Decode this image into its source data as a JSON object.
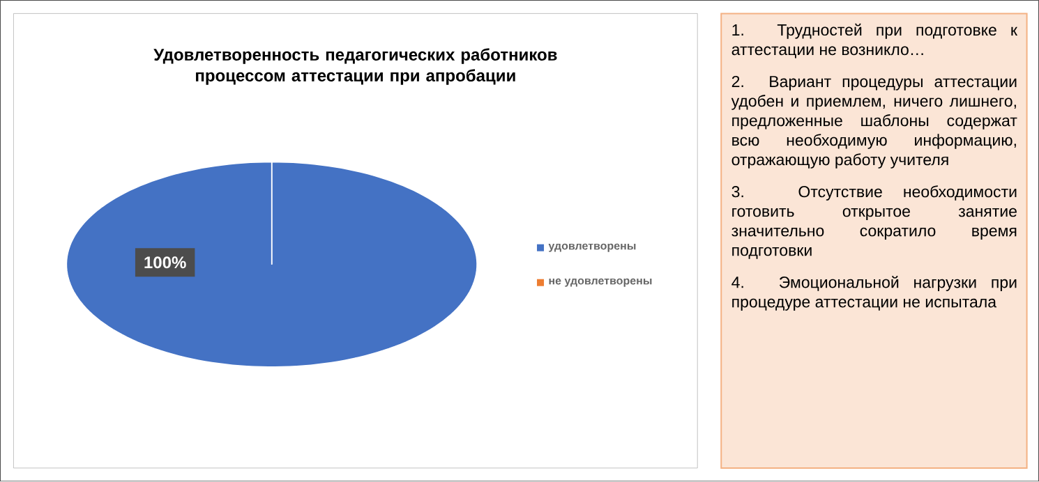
{
  "chart_data": [
    {
      "type": "pie",
      "title": "Удовлетворенность педагогических работников процессом аттестации при апробации",
      "categories": [
        "удовлетворены",
        "не удовлетворены"
      ],
      "values": [
        100,
        0
      ],
      "colors": [
        "#4472c4",
        "#ed7d31"
      ],
      "value_labels": [
        "100%",
        null
      ],
      "legend": "right"
    },
    {
      "type": "other",
      "annotations": [
        "1. Трудностей при подготовке к аттестации не возникло…",
        "2. Вариант процедуры аттестации удобен и приемлем, ничего лишнего, предложенные шаблоны содержат всю необходимую информацию, отражающую работу учителя",
        "3. Отсутствие необходимости готовить открытое занятие значительно сократило время подготовки",
        "4. Эмоциональной нагрузки при процедуре аттестации не испытала"
      ]
    }
  ]
}
